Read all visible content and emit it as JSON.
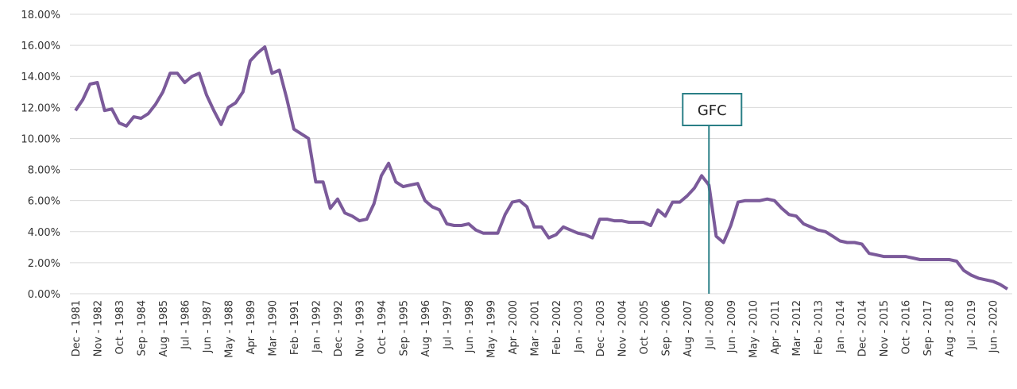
{
  "chart_data": {
    "type": "line",
    "categories": [
      "Dec - 1981",
      null,
      null,
      "Nov - 1982",
      null,
      null,
      "Oct - 1983",
      null,
      null,
      "Sep - 1984",
      null,
      null,
      "Aug - 1985",
      null,
      null,
      "Jul - 1986",
      null,
      null,
      "Jun - 1987",
      null,
      null,
      "May - 1988",
      null,
      null,
      "Apr - 1989",
      null,
      null,
      "Mar - 1990",
      null,
      null,
      "Feb - 1991",
      null,
      null,
      "Jan - 1992",
      null,
      null,
      "Dec - 1992",
      null,
      null,
      "Nov - 1993",
      null,
      null,
      "Oct - 1994",
      null,
      null,
      "Sep - 1995",
      null,
      null,
      "Aug - 1996",
      null,
      null,
      "Jul - 1997",
      null,
      null,
      "Jun - 1998",
      null,
      null,
      "May - 1999",
      null,
      null,
      "Apr - 2000",
      null,
      null,
      "Mar - 2001",
      null,
      null,
      "Feb - 2002",
      null,
      null,
      "Jan - 2003",
      null,
      null,
      "Dec - 2003",
      null,
      null,
      "Nov - 2004",
      null,
      null,
      "Oct - 2005",
      null,
      null,
      "Sep - 2006",
      null,
      null,
      "Aug - 2007",
      null,
      null,
      "Jul - 2008",
      null,
      null,
      "Jun - 2009",
      null,
      null,
      "May - 2010",
      null,
      null,
      "Apr - 2011",
      null,
      null,
      "Mar - 2012",
      null,
      null,
      "Feb - 2013",
      null,
      null,
      "Jan - 2014",
      null,
      null,
      "Dec - 2014",
      null,
      null,
      "Nov - 2015",
      null,
      null,
      "Oct - 2016",
      null,
      null,
      "Sep - 2017",
      null,
      null,
      "Aug - 2018",
      null,
      null,
      "Jul - 2019",
      null,
      null,
      "Jun - 2020",
      null,
      null
    ],
    "series": [
      {
        "color": "#7b5a9a",
        "values": [
          11.8,
          12.5,
          13.5,
          13.6,
          11.8,
          11.9,
          11.0,
          10.8,
          11.4,
          11.3,
          11.6,
          12.2,
          13.0,
          14.2,
          14.2,
          13.6,
          14.0,
          14.2,
          12.8,
          11.8,
          10.9,
          12.0,
          12.3,
          13.0,
          15.0,
          15.5,
          15.9,
          14.2,
          14.4,
          12.6,
          10.6,
          10.3,
          10.0,
          7.2,
          7.2,
          5.5,
          6.1,
          5.2,
          5.0,
          4.7,
          4.8,
          5.8,
          7.6,
          8.4,
          7.2,
          6.9,
          7.0,
          7.1,
          6.0,
          5.6,
          5.4,
          4.5,
          4.4,
          4.4,
          4.5,
          4.1,
          3.9,
          3.9,
          3.9,
          5.1,
          5.9,
          6.0,
          5.6,
          4.3,
          4.3,
          3.6,
          3.8,
          4.3,
          4.1,
          3.9,
          3.8,
          3.6,
          4.8,
          4.8,
          4.7,
          4.7,
          4.6,
          4.6,
          4.6,
          4.4,
          5.4,
          5.0,
          5.9,
          5.9,
          6.3,
          6.8,
          7.6,
          7.0,
          3.7,
          3.3,
          4.4,
          5.9,
          6.0,
          6.0,
          6.0,
          6.1,
          6.0,
          5.5,
          5.1,
          5.0,
          4.5,
          4.3,
          4.1,
          4.0,
          3.7,
          3.4,
          3.3,
          3.3,
          3.2,
          2.6,
          2.5,
          2.4,
          2.4,
          2.4,
          2.4,
          2.3,
          2.2,
          2.2,
          2.2,
          2.2,
          2.2,
          2.1,
          1.5,
          1.2,
          1.0,
          0.9,
          0.8,
          0.6,
          0.3
        ]
      }
    ],
    "ylim": [
      0,
      18
    ],
    "yticks": [
      {
        "value": 0,
        "label": "0.00%"
      },
      {
        "value": 2,
        "label": "2.00%"
      },
      {
        "value": 4,
        "label": "4.00%"
      },
      {
        "value": 6,
        "label": "6.00%"
      },
      {
        "value": 8,
        "label": "8.00%"
      },
      {
        "value": 10,
        "label": "10.00%"
      },
      {
        "value": 12,
        "label": "12.00%"
      },
      {
        "value": 14,
        "label": "14.00%"
      },
      {
        "value": 16,
        "label": "16.00%"
      },
      {
        "value": 18,
        "label": "18.00%"
      }
    ],
    "grid": true,
    "annotations": [
      {
        "text": "GFC",
        "category": "Jul - 2008",
        "color": "#2a7f86"
      }
    ]
  }
}
